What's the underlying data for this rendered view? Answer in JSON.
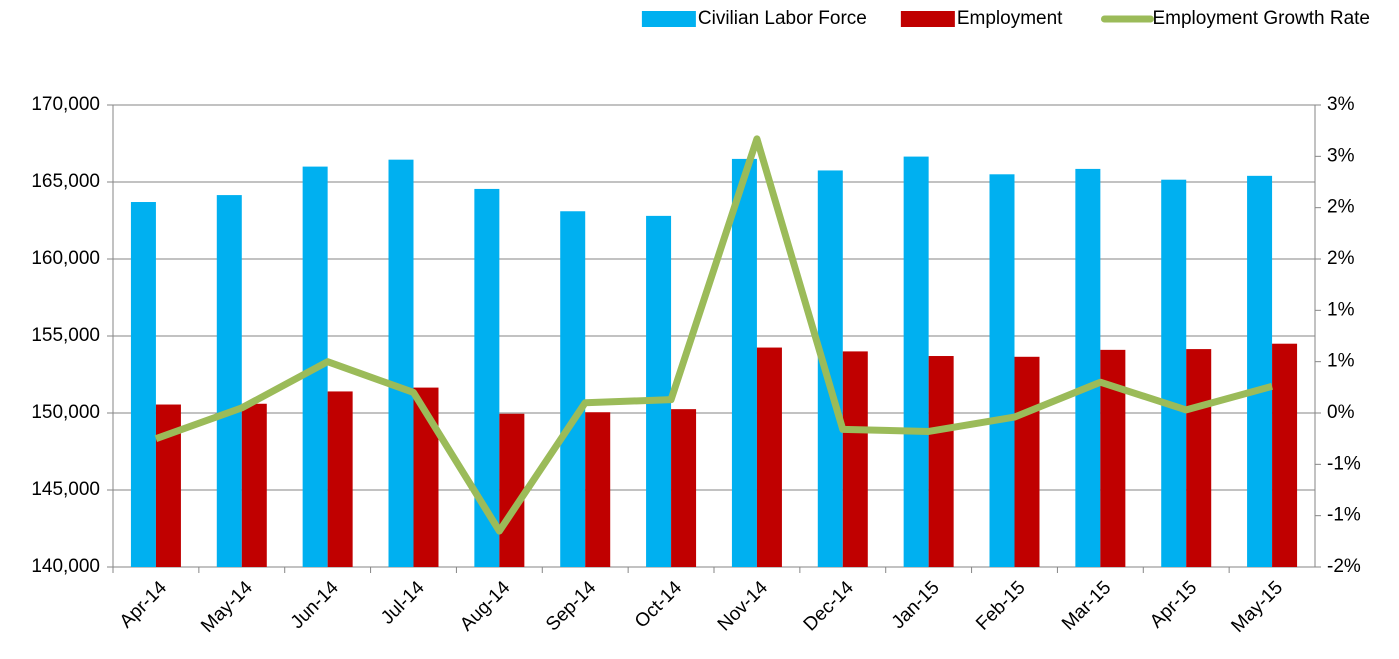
{
  "chart_data": {
    "type": "bar-line",
    "categories": [
      "Apr-14",
      "May-14",
      "Jun-14",
      "Jul-14",
      "Aug-14",
      "Sep-14",
      "Oct-14",
      "Nov-14",
      "Dec-14",
      "Jan-15",
      "Feb-15",
      "Mar-15",
      "Apr-15",
      "May-15"
    ],
    "series": [
      {
        "name": "Civilian Labor Force",
        "color": "#00b0f0",
        "kind": "bar",
        "values": [
          163700,
          164150,
          166000,
          166450,
          164550,
          163100,
          162800,
          166500,
          165750,
          166650,
          165500,
          165850,
          165150,
          165400
        ]
      },
      {
        "name": "Employment",
        "color": "#c00000",
        "kind": "bar",
        "values": [
          150550,
          150600,
          151400,
          151650,
          149950,
          150050,
          150250,
          154250,
          154000,
          153700,
          153650,
          154100,
          154150,
          154500
        ]
      },
      {
        "name": "Employment Growth Rate",
        "color": "#9bbb59",
        "kind": "line",
        "axis": "y2",
        "values": [
          -0.25,
          0.05,
          0.5,
          0.2,
          -1.15,
          0.1,
          0.13,
          2.67,
          -0.16,
          -0.18,
          -0.04,
          0.3,
          0.03,
          0.26
        ]
      }
    ],
    "ylim": [
      140000,
      170000
    ],
    "yticks": [
      {
        "value": 140000,
        "label": "140,000"
      },
      {
        "value": 145000,
        "label": "145,000"
      },
      {
        "value": 150000,
        "label": "150,000"
      },
      {
        "value": 155000,
        "label": "155,000"
      },
      {
        "value": 160000,
        "label": "160,000"
      },
      {
        "value": 165000,
        "label": "165,000"
      },
      {
        "value": 170000,
        "label": "170,000"
      }
    ],
    "y2lim": [
      -1.5,
      3
    ],
    "y2ticks": [
      {
        "value": -1.5,
        "label": "-2%"
      },
      {
        "value": -1,
        "label": "-1%"
      },
      {
        "value": -0.5,
        "label": "-1%"
      },
      {
        "value": 0,
        "label": "0%"
      },
      {
        "value": 0.5,
        "label": "1%"
      },
      {
        "value": 1,
        "label": "1%"
      },
      {
        "value": 1.5,
        "label": "2%"
      },
      {
        "value": 2,
        "label": "2%"
      },
      {
        "value": 2.5,
        "label": "3%"
      },
      {
        "value": 3,
        "label": "3%"
      }
    ],
    "grid": true,
    "legend": "top-right"
  }
}
